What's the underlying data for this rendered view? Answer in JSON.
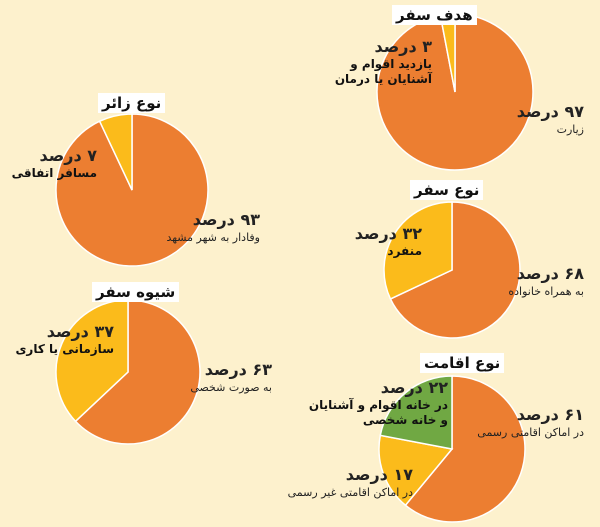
{
  "colors": {
    "orange": "#ec7e31",
    "yellow": "#fbbb1b",
    "green": "#70a843",
    "background": "#fdf1cd"
  },
  "chart_data": [
    {
      "type": "pie",
      "title": "هدف سفر",
      "slices": [
        {
          "label": "زیارت",
          "value": 97,
          "pct_text": "۹۷ درصد",
          "color": "#ec7e31"
        },
        {
          "label": "بازدید اقوام و آشنایان یا درمان",
          "value": 3,
          "pct_text": "۳ درصد",
          "color": "#fbbb1b"
        }
      ]
    },
    {
      "type": "pie",
      "title": "نوع زائر",
      "slices": [
        {
          "label": "وفادار به شهر مشهد",
          "value": 93,
          "pct_text": "۹۳ درصد",
          "color": "#ec7e31"
        },
        {
          "label": "مسافر اتفاقی",
          "value": 7,
          "pct_text": "۷ درصد",
          "color": "#fbbb1b"
        }
      ]
    },
    {
      "type": "pie",
      "title": "نوع سفر",
      "slices": [
        {
          "label": "به همراه خانواده",
          "value": 68,
          "pct_text": "۶۸ درصد",
          "color": "#ec7e31"
        },
        {
          "label": "منفرد",
          "value": 32,
          "pct_text": "۳۲ درصد",
          "color": "#fbbb1b"
        }
      ]
    },
    {
      "type": "pie",
      "title": "شیوه سفر",
      "slices": [
        {
          "label": "به صورت شخصی",
          "value": 63,
          "pct_text": "۶۳ درصد",
          "color": "#ec7e31"
        },
        {
          "label": "سازمانی یا کاری",
          "value": 37,
          "pct_text": "۳۷ درصد",
          "color": "#fbbb1b"
        }
      ]
    },
    {
      "type": "pie",
      "title": "نوع اقامت",
      "slices": [
        {
          "label": "در اماکن اقامتی رسمی",
          "value": 61,
          "pct_text": "۶۱ درصد",
          "color": "#ec7e31"
        },
        {
          "label": "در اماکن اقامتی غیر رسمی",
          "value": 17,
          "pct_text": "۱۷ درصد",
          "color": "#fbbb1b"
        },
        {
          "label": "در خانه اقوام و آشنایان و خانه شخصی",
          "value": 22,
          "pct_text": "۲۲ درصد",
          "color": "#70a843"
        }
      ]
    }
  ]
}
